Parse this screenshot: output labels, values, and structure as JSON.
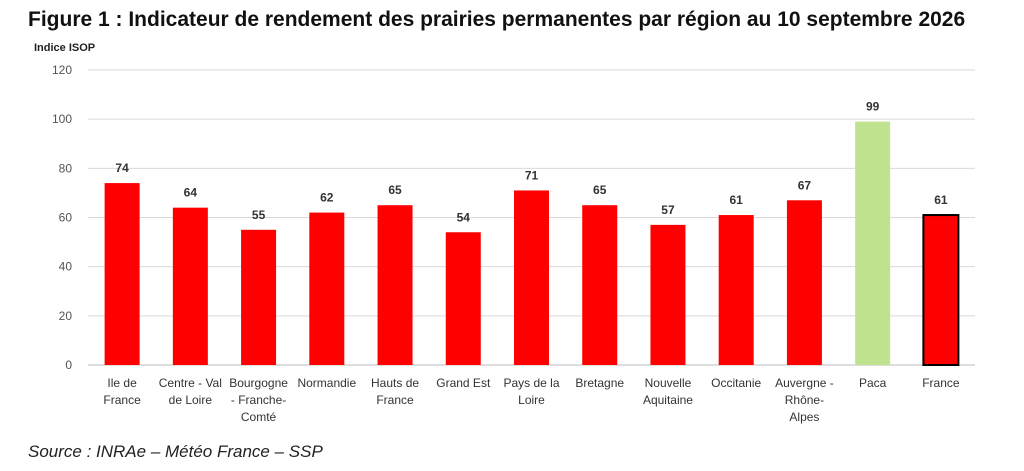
{
  "title": "Figure 1 : Indicateur de rendement des prairies permanentes par région au 10 septembre 2026",
  "source": "Source : INRAe – Météo France – SSP",
  "colors": {
    "default": "#ff0000",
    "paca": "#bfe38f",
    "outline": "#000000"
  },
  "chart_data": {
    "type": "bar",
    "title": "Figure 1 : Indicateur de rendement des prairies permanentes par région au 10 septembre 2026",
    "xlabel": "",
    "ylabel": "Indice ISOP",
    "ylim": [
      0,
      120
    ],
    "yticks": [
      0,
      20,
      40,
      60,
      80,
      100,
      120
    ],
    "grid": true,
    "categories": [
      "Ile de France",
      "Centre - Val de Loire",
      "Bourgogne - Franche-Comté",
      "Normandie",
      "Hauts de France",
      "Grand Est",
      "Pays de la Loire",
      "Bretagne",
      "Nouvelle Aquitaine",
      "Occitanie",
      "Auvergne - Rhône-Alpes",
      "Paca",
      "France"
    ],
    "category_lines": [
      [
        "Ile de",
        "France"
      ],
      [
        "Centre - Val",
        "de Loire"
      ],
      [
        "Bourgogne",
        "- Franche-",
        "Comté"
      ],
      [
        "Normandie"
      ],
      [
        "Hauts de",
        "France"
      ],
      [
        "Grand Est"
      ],
      [
        "Pays de la",
        "Loire"
      ],
      [
        "Bretagne"
      ],
      [
        "Nouvelle",
        "Aquitaine"
      ],
      [
        "Occitanie"
      ],
      [
        "Auvergne -",
        "Rhône-",
        "Alpes"
      ],
      [
        "Paca"
      ],
      [
        "France"
      ]
    ],
    "values": [
      74,
      64,
      55,
      62,
      65,
      54,
      71,
      65,
      57,
      61,
      67,
      99,
      61
    ],
    "data_labels": [
      "74",
      "64",
      "55",
      "62",
      "65",
      "54",
      "71",
      "65",
      "57",
      "61",
      "67",
      "99",
      "61"
    ],
    "highlight": {
      "Paca": "green",
      "France": "outlined"
    }
  }
}
